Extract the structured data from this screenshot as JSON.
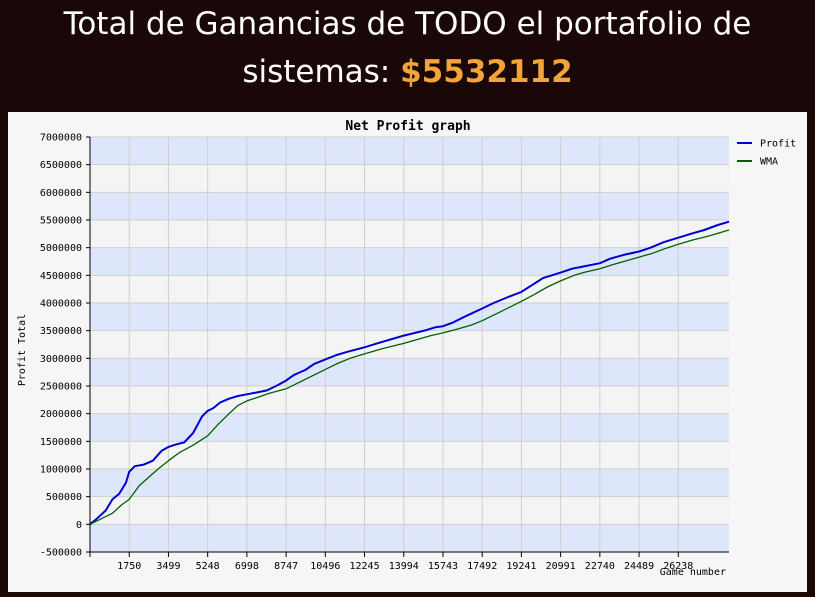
{
  "header": {
    "line1": "Total de Ganancias de TODO el portafolio de",
    "line2_prefix": "sistemas: ",
    "amount": "$5532112",
    "amount_color": "#f2a33a"
  },
  "chart_data": {
    "type": "line",
    "title": "Net Profit graph",
    "xlabel": "Game number",
    "ylabel": "Profit Total",
    "xlim": [
      0,
      28500
    ],
    "ylim": [
      -500000,
      7000000
    ],
    "x_ticks": [
      1750,
      3499,
      5248,
      6998,
      8747,
      10496,
      12245,
      13994,
      15743,
      17492,
      19241,
      20991,
      22740,
      24489,
      26238
    ],
    "y_ticks": [
      -500000,
      0,
      500000,
      1000000,
      1500000,
      2000000,
      2500000,
      3000000,
      3500000,
      4000000,
      4500000,
      5000000,
      5500000,
      6000000,
      6500000,
      7000000
    ],
    "grid": true,
    "band_colors": [
      "#dde6fb",
      "#f4f4f4"
    ],
    "legend_position": "top-right",
    "series": [
      {
        "name": "Profit",
        "color": "#0000d0",
        "x": [
          0,
          300,
          700,
          1000,
          1300,
          1600,
          1750,
          2000,
          2400,
          2800,
          3200,
          3499,
          3800,
          4200,
          4600,
          5000,
          5248,
          5500,
          5800,
          6200,
          6600,
          6998,
          7400,
          7900,
          8400,
          8747,
          9100,
          9600,
          10000,
          10496,
          11000,
          11500,
          12245,
          12800,
          13400,
          13994,
          14500,
          15000,
          15400,
          15743,
          16200,
          16800,
          17492,
          18000,
          18600,
          19241,
          19700,
          20200,
          20600,
          20991,
          21500,
          22000,
          22740,
          23200,
          23800,
          24489,
          25000,
          25600,
          26238,
          26800,
          27400,
          28000,
          28500
        ],
        "values": [
          0,
          100000,
          250000,
          450000,
          550000,
          750000,
          950000,
          1050000,
          1080000,
          1150000,
          1330000,
          1400000,
          1440000,
          1480000,
          1650000,
          1950000,
          2050000,
          2100000,
          2200000,
          2270000,
          2320000,
          2350000,
          2380000,
          2420000,
          2520000,
          2600000,
          2700000,
          2790000,
          2900000,
          2980000,
          3060000,
          3120000,
          3200000,
          3270000,
          3340000,
          3410000,
          3460000,
          3510000,
          3560000,
          3580000,
          3650000,
          3770000,
          3900000,
          4000000,
          4100000,
          4200000,
          4320000,
          4450000,
          4500000,
          4550000,
          4620000,
          4660000,
          4720000,
          4800000,
          4870000,
          4930000,
          5000000,
          5100000,
          5180000,
          5250000,
          5320000,
          5410000,
          5470000
        ]
      },
      {
        "name": "WMA",
        "color": "#006000",
        "x": [
          0,
          500,
          1000,
          1400,
          1750,
          2200,
          2700,
          3100,
          3499,
          4000,
          4600,
          5248,
          5700,
          6200,
          6600,
          6998,
          7500,
          8000,
          8747,
          9300,
          10000,
          10496,
          11000,
          11600,
          12245,
          13000,
          13994,
          14600,
          15200,
          15743,
          16400,
          17000,
          17492,
          18100,
          18700,
          19241,
          19800,
          20400,
          20991,
          21600,
          22100,
          22740,
          23300,
          23900,
          24489,
          25100,
          25700,
          26238,
          26900,
          27600,
          28500
        ],
        "values": [
          0,
          100000,
          200000,
          350000,
          450000,
          700000,
          880000,
          1020000,
          1150000,
          1300000,
          1430000,
          1600000,
          1800000,
          2000000,
          2150000,
          2230000,
          2300000,
          2370000,
          2450000,
          2560000,
          2700000,
          2800000,
          2900000,
          3000000,
          3080000,
          3170000,
          3270000,
          3340000,
          3410000,
          3460000,
          3530000,
          3600000,
          3680000,
          3800000,
          3920000,
          4030000,
          4150000,
          4290000,
          4400000,
          4500000,
          4560000,
          4620000,
          4690000,
          4760000,
          4830000,
          4900000,
          4990000,
          5060000,
          5140000,
          5210000,
          5320000
        ]
      }
    ]
  }
}
